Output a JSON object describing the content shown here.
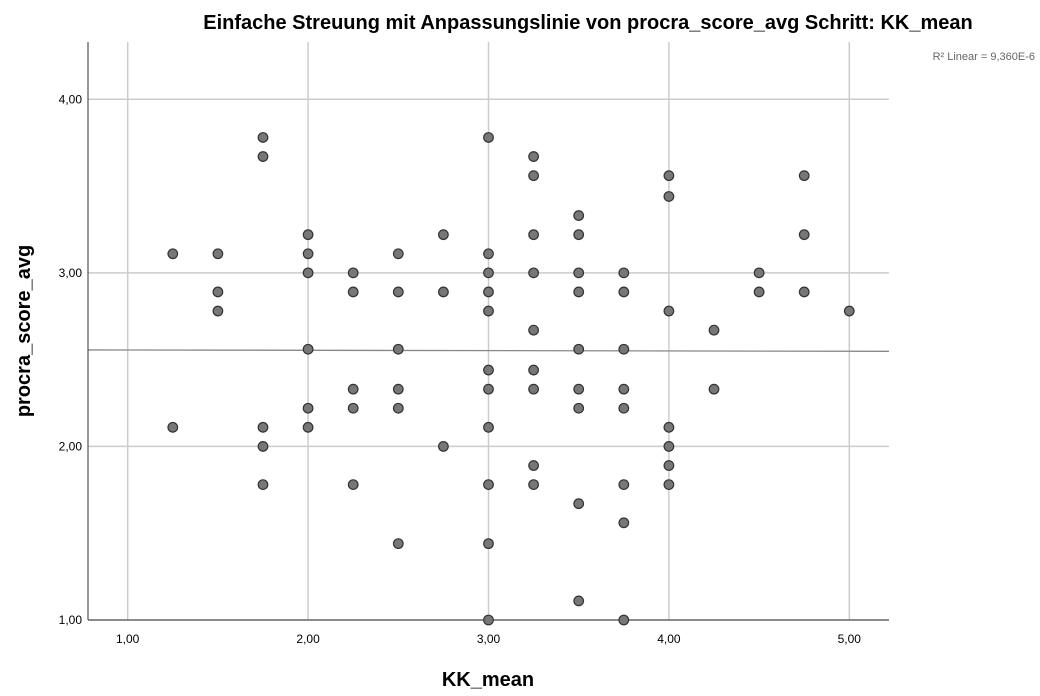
{
  "chart_data": {
    "type": "scatter",
    "title": "Einfache Streuung mit Anpassungslinie  von procra_score_avg Schritt: KK_mean",
    "xlabel": "KK_mean",
    "ylabel": "procra_score_avg",
    "annotation": "R² Linear = 9,360E-6",
    "xlim": [
      0.78,
      5.22
    ],
    "ylim": [
      1.0,
      4.33
    ],
    "x_ticks": [
      1,
      2,
      3,
      4,
      5
    ],
    "x_tick_labels": [
      "1,00",
      "2,00",
      "3,00",
      "4,00",
      "5,00"
    ],
    "y_ticks": [
      1,
      2,
      3,
      4
    ],
    "y_tick_labels": [
      "1,00",
      "2,00",
      "3,00",
      "4,00"
    ],
    "grid": true,
    "fit_line": {
      "type": "linear",
      "start": [
        0.78,
        2.556
      ],
      "end": [
        5.22,
        2.548
      ]
    },
    "colors": {
      "point_fill": "#777777",
      "point_stroke": "#333333",
      "grid": "#cccccc",
      "fit_line": "#888888"
    },
    "points": [
      {
        "x": 1.25,
        "y": 3.11
      },
      {
        "x": 1.25,
        "y": 2.11
      },
      {
        "x": 1.5,
        "y": 3.11
      },
      {
        "x": 1.5,
        "y": 2.89
      },
      {
        "x": 1.5,
        "y": 2.78
      },
      {
        "x": 1.75,
        "y": 3.78
      },
      {
        "x": 1.75,
        "y": 3.67
      },
      {
        "x": 1.75,
        "y": 2.11
      },
      {
        "x": 1.75,
        "y": 2.0
      },
      {
        "x": 1.75,
        "y": 1.78
      },
      {
        "x": 2.0,
        "y": 3.22
      },
      {
        "x": 2.0,
        "y": 3.11
      },
      {
        "x": 2.0,
        "y": 3.0
      },
      {
        "x": 2.0,
        "y": 2.56
      },
      {
        "x": 2.0,
        "y": 2.22
      },
      {
        "x": 2.0,
        "y": 2.11
      },
      {
        "x": 2.25,
        "y": 3.0
      },
      {
        "x": 2.25,
        "y": 2.89
      },
      {
        "x": 2.25,
        "y": 2.33
      },
      {
        "x": 2.25,
        "y": 2.22
      },
      {
        "x": 2.25,
        "y": 1.78
      },
      {
        "x": 2.5,
        "y": 3.11
      },
      {
        "x": 2.5,
        "y": 2.89
      },
      {
        "x": 2.5,
        "y": 2.56
      },
      {
        "x": 2.5,
        "y": 2.33
      },
      {
        "x": 2.5,
        "y": 2.22
      },
      {
        "x": 2.5,
        "y": 1.44
      },
      {
        "x": 2.75,
        "y": 3.22
      },
      {
        "x": 2.75,
        "y": 2.89
      },
      {
        "x": 2.75,
        "y": 2.0
      },
      {
        "x": 3.0,
        "y": 3.78
      },
      {
        "x": 3.0,
        "y": 3.11
      },
      {
        "x": 3.0,
        "y": 3.0
      },
      {
        "x": 3.0,
        "y": 2.89
      },
      {
        "x": 3.0,
        "y": 2.78
      },
      {
        "x": 3.0,
        "y": 2.44
      },
      {
        "x": 3.0,
        "y": 2.33
      },
      {
        "x": 3.0,
        "y": 2.11
      },
      {
        "x": 3.0,
        "y": 1.78
      },
      {
        "x": 3.0,
        "y": 1.44
      },
      {
        "x": 3.0,
        "y": 1.0
      },
      {
        "x": 3.25,
        "y": 3.67
      },
      {
        "x": 3.25,
        "y": 3.56
      },
      {
        "x": 3.25,
        "y": 3.22
      },
      {
        "x": 3.25,
        "y": 3.0
      },
      {
        "x": 3.25,
        "y": 2.67
      },
      {
        "x": 3.25,
        "y": 2.44
      },
      {
        "x": 3.25,
        "y": 2.33
      },
      {
        "x": 3.25,
        "y": 1.89
      },
      {
        "x": 3.25,
        "y": 1.78
      },
      {
        "x": 3.5,
        "y": 3.33
      },
      {
        "x": 3.5,
        "y": 3.22
      },
      {
        "x": 3.5,
        "y": 3.0
      },
      {
        "x": 3.5,
        "y": 2.89
      },
      {
        "x": 3.5,
        "y": 2.56
      },
      {
        "x": 3.5,
        "y": 2.33
      },
      {
        "x": 3.5,
        "y": 2.22
      },
      {
        "x": 3.5,
        "y": 1.67
      },
      {
        "x": 3.5,
        "y": 1.11
      },
      {
        "x": 3.75,
        "y": 3.0
      },
      {
        "x": 3.75,
        "y": 2.89
      },
      {
        "x": 3.75,
        "y": 2.56
      },
      {
        "x": 3.75,
        "y": 2.33
      },
      {
        "x": 3.75,
        "y": 2.22
      },
      {
        "x": 3.75,
        "y": 1.78
      },
      {
        "x": 3.75,
        "y": 1.56
      },
      {
        "x": 3.75,
        "y": 1.0
      },
      {
        "x": 4.0,
        "y": 3.56
      },
      {
        "x": 4.0,
        "y": 3.44
      },
      {
        "x": 4.0,
        "y": 2.78
      },
      {
        "x": 4.0,
        "y": 2.11
      },
      {
        "x": 4.0,
        "y": 2.0
      },
      {
        "x": 4.0,
        "y": 1.89
      },
      {
        "x": 4.0,
        "y": 1.78
      },
      {
        "x": 4.25,
        "y": 2.67
      },
      {
        "x": 4.25,
        "y": 2.33
      },
      {
        "x": 4.5,
        "y": 3.0
      },
      {
        "x": 4.5,
        "y": 2.89
      },
      {
        "x": 4.75,
        "y": 3.56
      },
      {
        "x": 4.75,
        "y": 3.22
      },
      {
        "x": 4.75,
        "y": 2.89
      },
      {
        "x": 5.0,
        "y": 2.78
      }
    ]
  }
}
